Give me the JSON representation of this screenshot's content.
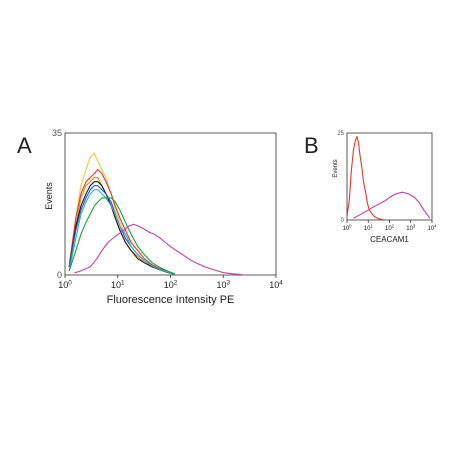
{
  "panels": {
    "a_letter": "A",
    "b_letter": "B"
  },
  "chart_data": [
    {
      "panel": "A",
      "type": "line",
      "xlabel": "Fluorescence Intensity PE",
      "ylabel": "Events",
      "xscale": "log",
      "xlim": [
        1,
        10000
      ],
      "ylim": [
        0,
        35
      ],
      "x_ticks": [
        {
          "value": 1,
          "label": "10",
          "sup": "0"
        },
        {
          "value": 10,
          "label": "10",
          "sup": "1"
        },
        {
          "value": 100,
          "label": "10",
          "sup": "2"
        },
        {
          "value": 1000,
          "label": "10",
          "sup": "3"
        },
        {
          "value": 10000,
          "label": "10",
          "sup": "4"
        }
      ],
      "y_ticks": [
        {
          "value": 0,
          "label": "0"
        },
        {
          "value": 35,
          "label": "35"
        }
      ],
      "grid": false,
      "legend": "none",
      "series": [
        {
          "color": "#f4c842",
          "x": [
            1.2,
            1.6,
            2.0,
            2.5,
            3.0,
            3.6,
            4.2,
            5.0,
            6.0,
            7.5,
            9,
            11,
            14,
            18,
            24,
            32,
            45,
            65,
            90,
            120
          ],
          "y": [
            3,
            14,
            22,
            26,
            29,
            30,
            28,
            26,
            24,
            20,
            16,
            13,
            10,
            8,
            6,
            4,
            2.5,
            1.5,
            0.8,
            0.3
          ]
        },
        {
          "color": "#e8352b",
          "x": [
            1.2,
            1.6,
            2.0,
            2.5,
            3.0,
            3.6,
            4.2,
            5.0,
            6.0,
            7.5,
            9,
            11,
            14,
            18,
            24,
            32,
            45,
            65,
            90,
            120
          ],
          "y": [
            2,
            14,
            20,
            23,
            24,
            25,
            26,
            25,
            23,
            20,
            17,
            14,
            11,
            8,
            6,
            4,
            2.5,
            1.5,
            0.8,
            0.3
          ]
        },
        {
          "color": "#f48a24",
          "x": [
            1.2,
            1.6,
            2.0,
            2.5,
            3.0,
            3.6,
            4.2,
            5.0,
            6.0,
            7.5,
            9,
            11,
            14,
            18,
            24,
            32,
            45,
            65,
            90,
            120
          ],
          "y": [
            2,
            12,
            19,
            22,
            23,
            24,
            24,
            22,
            20,
            17,
            14,
            11,
            8,
            6,
            4.5,
            3,
            2,
            1.2,
            0.6,
            0.2
          ]
        },
        {
          "color": "#1a1a1a",
          "x": [
            1.2,
            1.6,
            2.0,
            2.5,
            3.0,
            3.6,
            4.2,
            5.0,
            6.0,
            7.5,
            9,
            11,
            14,
            18,
            24,
            32,
            45,
            65,
            90,
            120
          ],
          "y": [
            2,
            12,
            17,
            20,
            22,
            23,
            23,
            22,
            20,
            17,
            14,
            11,
            8,
            6,
            4,
            3,
            2,
            1.2,
            0.6,
            0.2
          ]
        },
        {
          "color": "#2d56c6",
          "x": [
            1.2,
            1.6,
            2.0,
            2.5,
            3.0,
            3.6,
            4.2,
            5.0,
            6.0,
            7.5,
            9,
            11,
            14,
            18,
            24,
            32,
            45,
            65,
            90,
            120
          ],
          "y": [
            2,
            11,
            16,
            19,
            21,
            22,
            22,
            21,
            20,
            18,
            15,
            12,
            9,
            7,
            5,
            3.5,
            2.2,
            1.3,
            0.7,
            0.2
          ]
        },
        {
          "color": "#2bb0d8",
          "x": [
            1.2,
            1.6,
            2.0,
            2.5,
            3.0,
            3.6,
            4.2,
            5.0,
            6.0,
            7.5,
            9,
            11,
            14,
            18,
            24,
            32,
            45,
            65,
            90,
            120
          ],
          "y": [
            1,
            9,
            15,
            18,
            20,
            21,
            21,
            20,
            19,
            17,
            15,
            12,
            10,
            7,
            5,
            3.5,
            2.2,
            1.3,
            0.7,
            0.2
          ]
        },
        {
          "color": "#1d9e3b",
          "x": [
            1.2,
            1.6,
            2.0,
            2.5,
            3.0,
            3.6,
            4.2,
            5.0,
            6.0,
            7.5,
            9,
            11,
            14,
            18,
            24,
            32,
            45,
            65,
            90,
            120
          ],
          "y": [
            1,
            6,
            10,
            13,
            15,
            17,
            18,
            19,
            19,
            19,
            18,
            16,
            13,
            10,
            7,
            5,
            3,
            1.8,
            0.9,
            0.3
          ]
        },
        {
          "color": "#c040a8",
          "x": [
            1.5,
            2.0,
            3.0,
            4.0,
            5.0,
            6.5,
            8,
            10,
            13,
            16,
            20,
            25,
            30,
            40,
            50,
            65,
            80,
            100,
            130,
            170,
            220,
            300,
            450,
            700,
            1000,
            1500,
            2200
          ],
          "y": [
            0.5,
            1,
            2,
            4,
            6,
            8,
            9,
            10,
            11,
            12,
            12.5,
            12,
            11.5,
            10.5,
            10,
            9,
            8,
            7,
            6,
            5,
            4,
            3,
            2,
            1.2,
            0.6,
            0.3,
            0.1
          ]
        }
      ]
    },
    {
      "panel": "B",
      "type": "line",
      "xlabel": "CEACAM1",
      "ylabel": "Events",
      "xscale": "log",
      "xlim": [
        1,
        10000
      ],
      "ylim": [
        0,
        25
      ],
      "x_ticks": [
        {
          "value": 1,
          "label": "10",
          "sup": "0"
        },
        {
          "value": 10,
          "label": "10",
          "sup": "1"
        },
        {
          "value": 100,
          "label": "10",
          "sup": "2"
        },
        {
          "value": 1000,
          "label": "10",
          "sup": "3"
        },
        {
          "value": 10000,
          "label": "10",
          "sup": "4"
        }
      ],
      "y_ticks": [
        {
          "value": 0,
          "label": "0"
        },
        {
          "value": 25,
          "label": "25"
        }
      ],
      "grid": false,
      "legend": "none",
      "series": [
        {
          "color": "#e8352b",
          "x": [
            1.0,
            1.3,
            1.6,
            2.0,
            2.5,
            3.0,
            3.5,
            4.0,
            5.0,
            6.0,
            7.5,
            9,
            11,
            14,
            18,
            25,
            35,
            50
          ],
          "y": [
            1,
            6,
            14,
            20,
            23,
            24,
            22,
            19,
            15,
            11,
            8,
            5,
            3,
            2,
            1.2,
            0.6,
            0.3,
            0.1
          ]
        },
        {
          "color": "#c040a8",
          "x": [
            2,
            4,
            8,
            15,
            30,
            60,
            100,
            200,
            400,
            800,
            1500,
            2500,
            4000,
            6000,
            8000
          ],
          "y": [
            0.5,
            1.5,
            2.5,
            3.5,
            4.5,
            5.5,
            6.5,
            7.5,
            8,
            7.5,
            6.5,
            5,
            3,
            1.5,
            0.5
          ]
        }
      ]
    }
  ]
}
